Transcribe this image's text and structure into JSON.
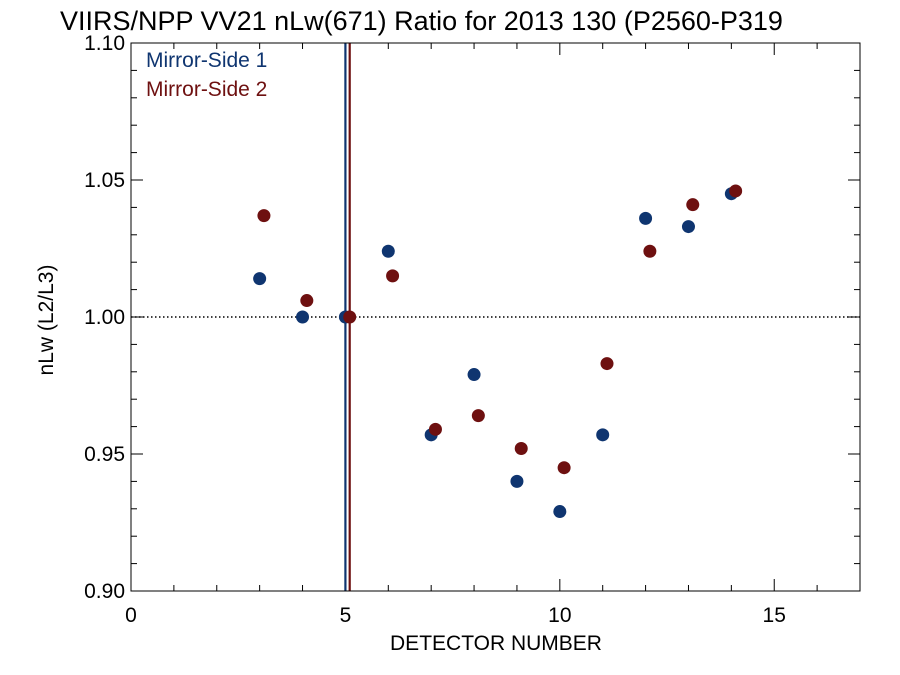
{
  "chart_data": {
    "type": "scatter",
    "title": "VIIRS/NPP VV21 nLw(671) Ratio for 2013 130 (P2560-P319",
    "xlabel": "DETECTOR NUMBER",
    "ylabel": "nLw (L2/L3)",
    "xlim": [
      0,
      17
    ],
    "ylim": [
      0.9,
      1.1
    ],
    "x_ticks": [
      0,
      5,
      10,
      15
    ],
    "x_tick_labels": [
      "0",
      "5",
      "10",
      "15"
    ],
    "y_ticks": [
      0.9,
      0.95,
      1.0,
      1.05,
      1.1
    ],
    "y_tick_labels": [
      "0.90",
      "0.95",
      "1.00",
      "1.05",
      "1.10"
    ],
    "reference_line_y": 1.0,
    "legend_position": "top-left",
    "series": [
      {
        "name": "Mirror-Side 1",
        "color": "#0f3570",
        "x": [
          3,
          4,
          5,
          6,
          7,
          8,
          9,
          10,
          11,
          12,
          13,
          14
        ],
        "y": [
          1.014,
          1.0,
          1.0,
          1.024,
          0.957,
          0.979,
          0.94,
          0.929,
          0.957,
          1.036,
          1.033,
          1.045
        ],
        "vline_x": 5.0
      },
      {
        "name": "Mirror-Side 2",
        "color": "#6e1010",
        "x": [
          3.1,
          4.1,
          5.1,
          6.1,
          7.1,
          8.1,
          9.1,
          10.1,
          11.1,
          12.1,
          13.1,
          14.1
        ],
        "y": [
          1.037,
          1.006,
          1.0,
          1.015,
          0.959,
          0.964,
          0.952,
          0.945,
          0.983,
          1.024,
          1.041,
          1.046
        ],
        "vline_x": 5.1
      }
    ]
  }
}
